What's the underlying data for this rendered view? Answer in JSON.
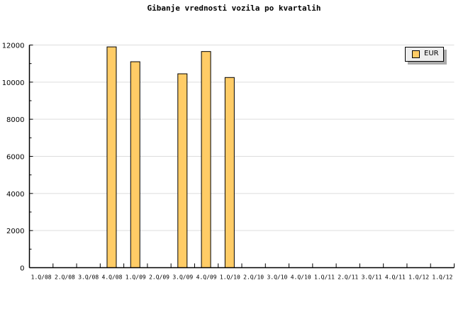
{
  "chart_data": {
    "type": "bar",
    "title": "Gibanje vrednosti vozila po kvartalih",
    "xlabel": "",
    "ylabel": "",
    "categories": [
      "1.Q/08",
      "2.Q/08",
      "3.Q/08",
      "4.Q/08",
      "1.Q/09",
      "2.Q/09",
      "3.Q/09",
      "4.Q/09",
      "1.Q/10",
      "2.Q/10",
      "3.Q/10",
      "4.Q/10",
      "1.Q/11",
      "2.Q/11",
      "3.Q/11",
      "4.Q/11",
      "1.Q/12",
      "1.Q/12"
    ],
    "series": [
      {
        "name": "EUR",
        "values": [
          null,
          null,
          null,
          11900,
          11100,
          null,
          10450,
          11650,
          10250,
          null,
          null,
          null,
          null,
          null,
          null,
          null,
          null,
          null
        ]
      }
    ],
    "ylim": [
      0,
      12000
    ],
    "yticks": [
      "0",
      "2000",
      "4000",
      "6000",
      "8000",
      "10000",
      "12000"
    ],
    "grid": true,
    "legend": "top-right",
    "colors": {
      "bar": "#ffcc66",
      "grid": "#dddddd",
      "legend_bg": "#eeeeee"
    }
  }
}
